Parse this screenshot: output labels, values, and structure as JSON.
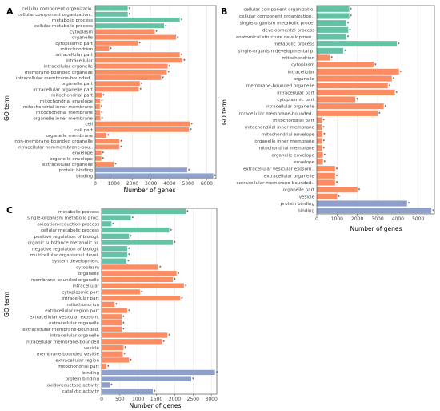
{
  "colors": {
    "green": "#66c2a5",
    "orange": "#fc8d62",
    "blue": "#8da0cb",
    "grid": "#e6e6e6",
    "frame": "#555555"
  },
  "chart_data": [
    {
      "panel": "A",
      "type": "bar",
      "orientation": "horizontal",
      "xlabel": "Number of genes",
      "ylabel": "GO term",
      "xlim": [
        0,
        6500
      ],
      "xticks": [
        0,
        1000,
        2000,
        3000,
        4000,
        5000,
        6000
      ],
      "grid": true,
      "star_label": "*",
      "bars": [
        {
          "label": "cellular component organizatio.",
          "value": 1750,
          "group": "green"
        },
        {
          "label": "cellular component organization..",
          "value": 1750,
          "group": "green"
        },
        {
          "label": "metabolic process",
          "value": 4550,
          "group": "green"
        },
        {
          "label": "cellular metabolic process",
          "value": 3700,
          "group": "green"
        },
        {
          "label": "cytoplasm",
          "value": 3200,
          "group": "orange"
        },
        {
          "label": "organelle",
          "value": 4350,
          "group": "orange"
        },
        {
          "label": "cytoplasmic part",
          "value": 2300,
          "group": "orange"
        },
        {
          "label": "mitochondrion",
          "value": 750,
          "group": "orange"
        },
        {
          "label": "intracellular part",
          "value": 4550,
          "group": "orange"
        },
        {
          "label": "intracellular",
          "value": 4700,
          "group": "orange"
        },
        {
          "label": "intracellular organelle",
          "value": 3900,
          "group": "orange"
        },
        {
          "label": "membrane-bounded organelle",
          "value": 3850,
          "group": "orange"
        },
        {
          "label": "intracellular membrane-bounded..",
          "value": 3550,
          "group": "orange"
        },
        {
          "label": "organelle part",
          "value": 2400,
          "group": "orange"
        },
        {
          "label": "intracellular organelle part",
          "value": 2350,
          "group": "orange"
        },
        {
          "label": "mitochondrial part",
          "value": 350,
          "group": "orange"
        },
        {
          "label": "mitochondrial envelope",
          "value": 270,
          "group": "orange"
        },
        {
          "label": "mitochondrial inner membrane",
          "value": 250,
          "group": "orange"
        },
        {
          "label": "mitochondrial membrane",
          "value": 260,
          "group": "orange"
        },
        {
          "label": "organelle inner membrane",
          "value": 280,
          "group": "orange"
        },
        {
          "label": "cell",
          "value": 5100,
          "group": "orange"
        },
        {
          "label": "cell part",
          "value": 5050,
          "group": "orange"
        },
        {
          "label": "organelle membrane",
          "value": 600,
          "group": "orange"
        },
        {
          "label": "non-membrane-bounded organelle",
          "value": 1300,
          "group": "orange"
        },
        {
          "label": "intracellular non-membrane-bou..",
          "value": 1300,
          "group": "orange"
        },
        {
          "label": "envelope",
          "value": 330,
          "group": "orange"
        },
        {
          "label": "organelle envelope",
          "value": 330,
          "group": "orange"
        },
        {
          "label": "extracellular organelle",
          "value": 1000,
          "group": "orange"
        },
        {
          "label": "protein binding",
          "value": 4950,
          "group": "blue"
        },
        {
          "label": "binding",
          "value": 6350,
          "group": "blue"
        }
      ]
    },
    {
      "panel": "B",
      "type": "bar",
      "orientation": "horizontal",
      "xlabel": "Number of genes",
      "ylabel": "GO term",
      "xlim": [
        0,
        5800
      ],
      "xticks": [
        0,
        1000,
        2000,
        3000,
        4000,
        5000
      ],
      "grid": true,
      "star_label": "*",
      "bars": [
        {
          "label": "cellular component organizatio.",
          "value": 1600,
          "group": "green"
        },
        {
          "label": "cellular component organization..",
          "value": 1600,
          "group": "green"
        },
        {
          "label": "single-organism metabolic proce.",
          "value": 1450,
          "group": "green"
        },
        {
          "label": "developmental process",
          "value": 1550,
          "group": "green"
        },
        {
          "label": "anatomical structure developmen..",
          "value": 1450,
          "group": "green"
        },
        {
          "label": "metabolic process",
          "value": 3950,
          "group": "green"
        },
        {
          "label": "single-organism developmental p.",
          "value": 1300,
          "group": "green"
        },
        {
          "label": "mitochondrion",
          "value": 650,
          "group": "orange"
        },
        {
          "label": "cytoplasm",
          "value": 2800,
          "group": "orange"
        },
        {
          "label": "intracellular",
          "value": 4050,
          "group": "orange"
        },
        {
          "label": "organelle",
          "value": 3700,
          "group": "orange"
        },
        {
          "label": "membrane-bounded organelle",
          "value": 3500,
          "group": "orange"
        },
        {
          "label": "intracellular part",
          "value": 3850,
          "group": "orange"
        },
        {
          "label": "cytoplasmic part",
          "value": 1900,
          "group": "orange"
        },
        {
          "label": "intracellular organelle",
          "value": 3300,
          "group": "orange"
        },
        {
          "label": "intracellular membrane-bounded..",
          "value": 3000,
          "group": "orange"
        },
        {
          "label": "mitochondrial part",
          "value": 250,
          "group": "orange"
        },
        {
          "label": "mitochondrial inner membrane",
          "value": 250,
          "group": "orange"
        },
        {
          "label": "mitochondrial envelope",
          "value": 280,
          "group": "orange"
        },
        {
          "label": "organelle inner membrane",
          "value": 260,
          "group": "orange"
        },
        {
          "label": "mitochondrial membrane",
          "value": 260,
          "group": "orange"
        },
        {
          "label": "organelle envelope",
          "value": 300,
          "group": "orange"
        },
        {
          "label": "envelope",
          "value": 300,
          "group": "orange"
        },
        {
          "label": "extracellular vesicular exosom..",
          "value": 900,
          "group": "orange"
        },
        {
          "label": "extracellular organelle",
          "value": 900,
          "group": "orange"
        },
        {
          "label": "extracellular membrane-bounded..",
          "value": 900,
          "group": "orange"
        },
        {
          "label": "organelle part",
          "value": 2000,
          "group": "orange"
        },
        {
          "label": "vesicle",
          "value": 1000,
          "group": "orange"
        },
        {
          "label": "protein binding",
          "value": 4450,
          "group": "blue"
        },
        {
          "label": "binding",
          "value": 5650,
          "group": "blue"
        }
      ]
    },
    {
      "panel": "C",
      "type": "bar",
      "orientation": "horizontal",
      "xlabel": "Number of genes",
      "ylabel": "GO term",
      "xlim": [
        0,
        3150
      ],
      "xticks": [
        0,
        500,
        1000,
        1500,
        2000,
        2500,
        3000
      ],
      "grid": true,
      "star_label": "*",
      "bars": [
        {
          "label": "metabolic process",
          "value": 2300,
          "group": "green"
        },
        {
          "label": "single-organism metabolic proc.",
          "value": 800,
          "group": "green"
        },
        {
          "label": "oxidation-reduction process",
          "value": 270,
          "group": "green"
        },
        {
          "label": "cellular metabolic process",
          "value": 1850,
          "group": "green"
        },
        {
          "label": "positive regulation of biologi.",
          "value": 750,
          "group": "green"
        },
        {
          "label": "organic substance metabolic pr.",
          "value": 1950,
          "group": "green"
        },
        {
          "label": "negative regulation of biologi.",
          "value": 700,
          "group": "green"
        },
        {
          "label": "multicellular organismal devel.",
          "value": 700,
          "group": "green"
        },
        {
          "label": "system development",
          "value": 680,
          "group": "green"
        },
        {
          "label": "cytoplasm",
          "value": 1550,
          "group": "orange"
        },
        {
          "label": "organelle",
          "value": 2050,
          "group": "orange"
        },
        {
          "label": "membrane-bounded organelle",
          "value": 1950,
          "group": "orange"
        },
        {
          "label": "intracellular",
          "value": 2250,
          "group": "orange"
        },
        {
          "label": "cytoplasmic part",
          "value": 1050,
          "group": "orange"
        },
        {
          "label": "intracellular part",
          "value": 2150,
          "group": "orange"
        },
        {
          "label": "mitochondrion",
          "value": 350,
          "group": "orange"
        },
        {
          "label": "extracellular region part",
          "value": 700,
          "group": "orange"
        },
        {
          "label": "extracellular vesicular exosom.",
          "value": 550,
          "group": "orange"
        },
        {
          "label": "extracellular organelle",
          "value": 550,
          "group": "orange"
        },
        {
          "label": "extracellular membrane-bounded.",
          "value": 550,
          "group": "orange"
        },
        {
          "label": "intracellular organelle",
          "value": 1800,
          "group": "orange"
        },
        {
          "label": "intracellular membrane-bounded",
          "value": 1650,
          "group": "orange"
        },
        {
          "label": "vesicle",
          "value": 600,
          "group": "orange"
        },
        {
          "label": "membrane-bounded vesicle",
          "value": 580,
          "group": "orange"
        },
        {
          "label": "extracellular region",
          "value": 750,
          "group": "orange"
        },
        {
          "label": "mitochondrial part",
          "value": 130,
          "group": "orange"
        },
        {
          "label": "binding",
          "value": 3100,
          "group": "blue"
        },
        {
          "label": "protein binding",
          "value": 2450,
          "group": "blue"
        },
        {
          "label": "oxidoreductase activity",
          "value": 220,
          "group": "blue"
        },
        {
          "label": "catalytic activity",
          "value": 1400,
          "group": "blue"
        }
      ]
    }
  ]
}
